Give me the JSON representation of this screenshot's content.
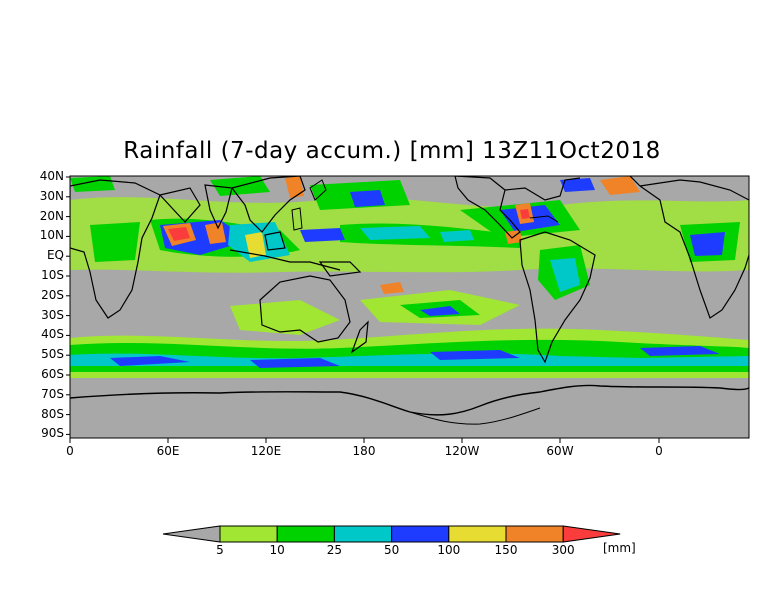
{
  "title": "Rainfall (7-day accum.) [mm] 13Z11Oct2018",
  "lat_labels": [
    "40N",
    "30N",
    "20N",
    "10N",
    "EQ",
    "10S",
    "20S",
    "30S",
    "40S",
    "50S",
    "60S",
    "70S",
    "80S",
    "90S"
  ],
  "lon_labels": [
    "0",
    "60E",
    "120E",
    "180",
    "120W",
    "60W",
    "0"
  ],
  "colorbar": {
    "unit": "[mm]",
    "thresholds": [
      "5",
      "10",
      "25",
      "50",
      "100",
      "150",
      "300"
    ],
    "colors": [
      "#a8a8a8",
      "#a0e632",
      "#00d200",
      "#00c8c8",
      "#1e3cff",
      "#e6dc32",
      "#f08228",
      "#fa3c3c"
    ]
  },
  "colors": {
    "background_ocean": "#a8a8a8",
    "coastline": "#000000"
  }
}
